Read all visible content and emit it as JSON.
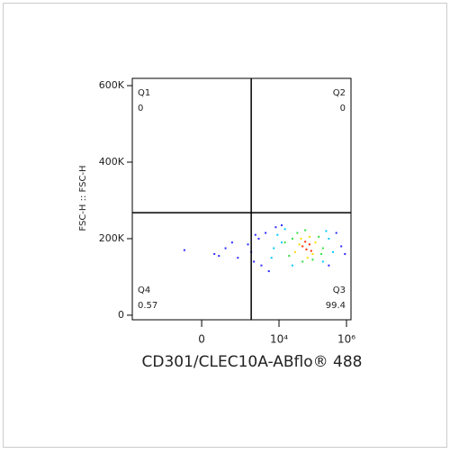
{
  "chart_data": {
    "type": "scatter",
    "x_label": "CD301/CLEC10A-ABflo® 488",
    "y_label": "FSC-H :: FSC-H",
    "xscale": "biexponential",
    "xlim": [
      -5800,
      1360000
    ],
    "ylim": [
      -12000,
      619000
    ],
    "xticks": [
      0,
      {
        "value": 10000,
        "label": "10⁴"
      },
      {
        "value": 1000000,
        "label": "10⁶"
      }
    ],
    "yticks": [
      0,
      {
        "value": 200000,
        "label": "200K"
      },
      {
        "value": 400000,
        "label": "400K"
      },
      {
        "value": 600000,
        "label": "600K"
      }
    ],
    "gate": {
      "x": 1500,
      "y": 268000
    },
    "quadrants": [
      {
        "name": "Q1",
        "value": 0
      },
      {
        "name": "Q2",
        "value": 0
      },
      {
        "name": "Q3",
        "value": 99.4
      },
      {
        "name": "Q4",
        "value": 0.57
      }
    ],
    "series": [
      {
        "color": "#2a2aff",
        "x": [
          -150,
          100,
          250,
          600,
          1200,
          1800,
          2500,
          4000,
          8000,
          700000,
          900000,
          500000,
          3000,
          5000,
          1500,
          400,
          12000,
          300000,
          150,
          2000
        ],
        "y": [
          170000,
          160000,
          175000,
          150000,
          185000,
          140000,
          200000,
          215000,
          230000,
          180000,
          160000,
          215000,
          130000,
          115000,
          165000,
          190000,
          235000,
          130000,
          155000,
          210000
        ]
      },
      {
        "color": "#00c8ff",
        "x": [
          6000,
          9000,
          15000,
          25000,
          300000,
          400000,
          200000,
          12000,
          7000,
          250000
        ],
        "y": [
          150000,
          210000,
          225000,
          130000,
          200000,
          165000,
          140000,
          190000,
          175000,
          220000
        ]
      },
      {
        "color": "#30e040",
        "x": [
          15000,
          20000,
          35000,
          150000,
          200000,
          100000,
          50000,
          25000,
          180000,
          60000
        ],
        "y": [
          190000,
          155000,
          215000,
          205000,
          175000,
          145000,
          140000,
          200000,
          160000,
          222000
        ]
      },
      {
        "color": "#ffd800",
        "x": [
          30000,
          45000,
          80000,
          120000,
          100000,
          40000,
          70000
        ],
        "y": [
          165000,
          200000,
          205000,
          190000,
          160000,
          185000,
          150000
        ]
      },
      {
        "color": "#ff2a00",
        "x": [
          50000,
          65000,
          80000,
          60000,
          90000
        ],
        "y": [
          180000,
          172000,
          185000,
          192000,
          168000
        ]
      }
    ]
  }
}
